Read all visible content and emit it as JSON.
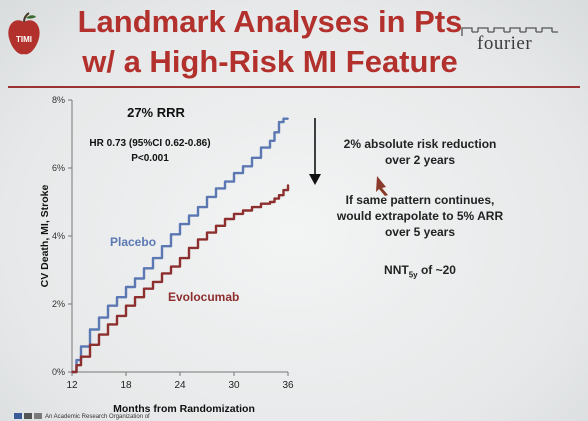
{
  "slide": {
    "title_line1": "Landmark Analyses in Pts",
    "title_line2": "w/ a High-Risk MI Feature",
    "logo_left_text": "TIMI",
    "logo_right_text": "fourier",
    "footer_text": "An Academic Research Organization of"
  },
  "annotations": {
    "arr_line1": "2% absolute risk reduction",
    "arr_line2": "over 2 years",
    "extrap_line1": "If same pattern continues,",
    "extrap_line2": "would extrapolate to 5% ARR",
    "extrap_line3": "over 5 years",
    "nnt_prefix": "NNT",
    "nnt_sub": "5y",
    "nnt_suffix": " of ~20"
  },
  "chart_data": {
    "type": "line",
    "xlabel": "Months from Randomization",
    "ylabel": "CV Death, MI, Stroke",
    "xlim": [
      12,
      36
    ],
    "ylim": [
      0,
      8
    ],
    "xticks": [
      12,
      18,
      24,
      30,
      36
    ],
    "yticks": [
      0,
      2,
      4,
      6,
      8
    ],
    "ytick_labels": [
      "0%",
      "2%",
      "4%",
      "6%",
      "8%"
    ],
    "grid": false,
    "colors": {
      "placebo": "#5b78b3",
      "evolocumab": "#8e2f2f",
      "axis": "#777777"
    },
    "annotations": {
      "rrr": "27% RRR",
      "hr": "HR 0.73 (95%CI 0.62-0.86)",
      "p": "P<0.001"
    },
    "series": [
      {
        "name": "Placebo",
        "x": [
          12,
          12.5,
          13,
          14,
          15,
          16,
          17,
          18,
          19,
          20,
          21,
          22,
          23,
          24,
          25,
          26,
          27,
          28,
          29,
          30,
          31,
          32,
          33,
          34,
          34.5,
          35,
          35.5,
          36
        ],
        "y": [
          0,
          0.35,
          0.75,
          1.25,
          1.6,
          1.95,
          2.2,
          2.5,
          2.75,
          3.05,
          3.35,
          3.7,
          4.05,
          4.35,
          4.6,
          4.85,
          5.15,
          5.4,
          5.6,
          5.85,
          6.05,
          6.3,
          6.6,
          6.8,
          7.05,
          7.35,
          7.45,
          7.45
        ]
      },
      {
        "name": "Evolocumab",
        "x": [
          12,
          12.5,
          13,
          14,
          15,
          16,
          17,
          18,
          19,
          20,
          21,
          22,
          23,
          24,
          25,
          26,
          27,
          28,
          29,
          30,
          31,
          32,
          33,
          34,
          34.5,
          35,
          35.5,
          36
        ],
        "y": [
          0,
          0.2,
          0.45,
          0.8,
          1.1,
          1.4,
          1.65,
          1.95,
          2.2,
          2.45,
          2.65,
          2.9,
          3.1,
          3.35,
          3.65,
          3.9,
          4.1,
          4.3,
          4.5,
          4.65,
          4.75,
          4.85,
          4.95,
          5.0,
          5.1,
          5.2,
          5.35,
          5.5
        ]
      }
    ]
  }
}
